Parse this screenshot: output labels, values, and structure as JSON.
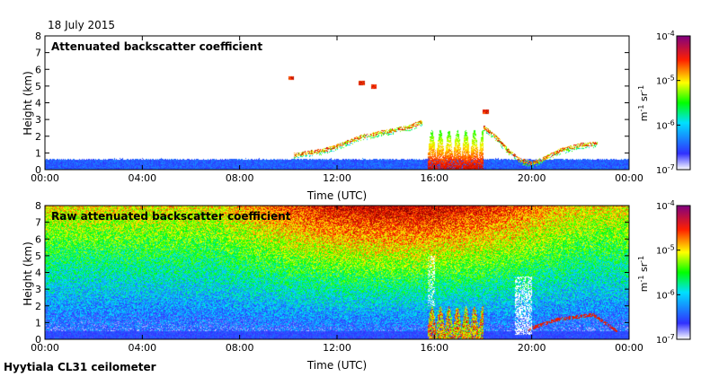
{
  "header": {
    "date": "18 July 2015"
  },
  "footer": {
    "instrument": "Hyytiala CL31 ceilometer"
  },
  "colorbar": {
    "unit_base": "m",
    "unit_base_exp": "-1",
    "unit_sr": "sr",
    "unit_sr_exp": "-1",
    "ticks": [
      {
        "base": "10",
        "exp": "-4"
      },
      {
        "base": "10",
        "exp": "-5"
      },
      {
        "base": "10",
        "exp": "-6"
      },
      {
        "base": "10",
        "exp": "-7"
      }
    ],
    "scale": "log",
    "range": [
      1e-07,
      0.0001
    ],
    "colormap": [
      "#ffffff",
      "#0000ff",
      "#00ffff",
      "#00ff00",
      "#ffff00",
      "#ff0000",
      "#800000"
    ]
  },
  "chart_data": [
    {
      "type": "heatmap",
      "title": "Attenuated backscatter coefficient",
      "xlabel": "Time (UTC)",
      "ylabel": "Height (km)",
      "x_ticks": [
        "00:00",
        "04:00",
        "08:00",
        "12:00",
        "16:00",
        "20:00",
        "00:00"
      ],
      "y_ticks": [
        "0",
        "1",
        "2",
        "3",
        "4",
        "5",
        "6",
        "7",
        "8"
      ],
      "xlim": [
        "00:00",
        "24:00"
      ],
      "ylim": [
        0,
        8
      ],
      "features": [
        {
          "kind": "boundary-layer",
          "start": 0,
          "end": 24,
          "top_km": 0.6,
          "level": "low"
        },
        {
          "kind": "cloud-layer",
          "points": [
            [
              10.2,
              0.9
            ],
            [
              11.5,
              1.2
            ],
            [
              12.3,
              1.6
            ],
            [
              13.0,
              2.0
            ],
            [
              14.0,
              2.3
            ],
            [
              15.0,
              2.6
            ],
            [
              15.5,
              2.9
            ]
          ]
        },
        {
          "kind": "cloud-layer",
          "points": [
            [
              18.0,
              2.6
            ],
            [
              18.5,
              2.0
            ],
            [
              19.0,
              1.2
            ],
            [
              19.5,
              0.6
            ],
            [
              20.0,
              0.4
            ],
            [
              20.5,
              0.7
            ],
            [
              21.2,
              1.2
            ],
            [
              22.0,
              1.5
            ],
            [
              22.7,
              1.6
            ]
          ]
        },
        {
          "kind": "elevated-cloud",
          "points": [
            [
              10.1,
              5.5
            ],
            [
              13.0,
              5.2
            ],
            [
              13.5,
              5.0
            ],
            [
              18.1,
              3.5
            ]
          ]
        },
        {
          "kind": "precipitation",
          "start": 15.7,
          "end": 18.0,
          "top_km": 2.4
        }
      ]
    },
    {
      "type": "heatmap",
      "title": "Raw attenuated backscatter coefficient",
      "xlabel": "Time (UTC)",
      "ylabel": "Height (km)",
      "x_ticks": [
        "00:00",
        "04:00",
        "08:00",
        "12:00",
        "16:00",
        "20:00",
        "00:00"
      ],
      "y_ticks": [
        "0",
        "1",
        "2",
        "3",
        "4",
        "5",
        "6",
        "7",
        "8"
      ],
      "xlim": [
        "00:00",
        "24:00"
      ],
      "ylim": [
        0,
        8
      ],
      "features": [
        {
          "kind": "noise-gradient",
          "start": 0,
          "end": 24,
          "note_levels": "low near ground, high aloft"
        },
        {
          "kind": "precipitation",
          "start": 15.7,
          "end": 18.0,
          "top_km": 2.0
        },
        {
          "kind": "cloud-layer",
          "points": [
            [
              19.8,
              0.6
            ],
            [
              21.0,
              1.2
            ],
            [
              22.5,
              1.5
            ],
            [
              23.5,
              0.5
            ]
          ]
        }
      ]
    }
  ]
}
